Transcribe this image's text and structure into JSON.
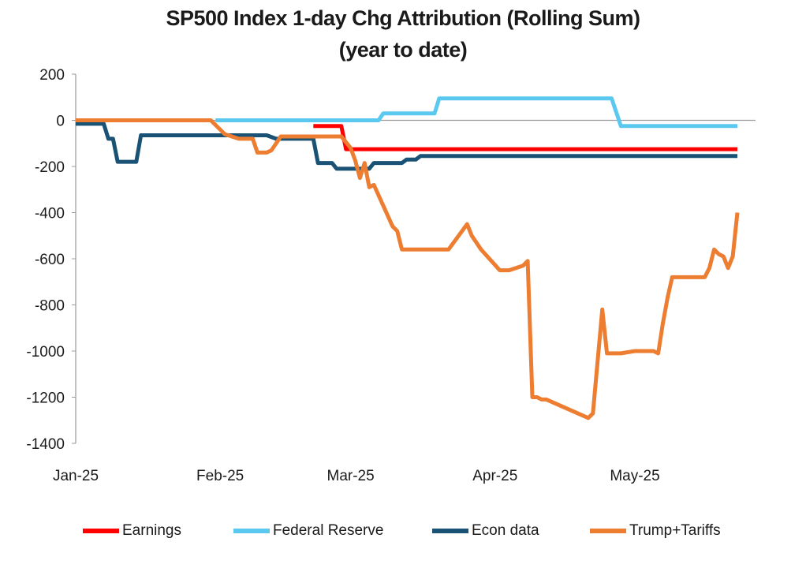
{
  "chart_data": {
    "type": "line",
    "title": "SP500 Index 1-day Chg Attribution (Rolling Sum)",
    "subtitle": "(year to date)",
    "xlabel": "",
    "ylabel": "",
    "ylim": [
      -1400,
      200
    ],
    "yticks": [
      200,
      0,
      -200,
      -400,
      -600,
      -800,
      -1000,
      -1200,
      -1400
    ],
    "xlim": [
      "2025-01-01",
      "2025-05-23"
    ],
    "xticks": [
      {
        "date": "2025-01-01",
        "label": "Jan-25"
      },
      {
        "date": "2025-02-01",
        "label": "Feb-25"
      },
      {
        "date": "2025-03-01",
        "label": "Mar-25"
      },
      {
        "date": "2025-04-01",
        "label": "Apr-25"
      },
      {
        "date": "2025-05-01",
        "label": "May-25"
      }
    ],
    "grid": false,
    "legend": "bottom",
    "series": [
      {
        "name": "Earnings",
        "color": "#ff0000",
        "x": [
          "2025-02-21",
          "2025-02-27",
          "2025-02-28",
          "2025-05-23"
        ],
        "y": [
          -25,
          -25,
          -125,
          -125
        ]
      },
      {
        "name": "Federal Reserve",
        "color": "#5bc8f0",
        "x": [
          "2025-01-31",
          "2025-03-07",
          "2025-03-08",
          "2025-03-19",
          "2025-03-20",
          "2025-04-26",
          "2025-04-28",
          "2025-05-23"
        ],
        "y": [
          0,
          0,
          30,
          30,
          95,
          95,
          -25,
          -25
        ]
      },
      {
        "name": "Econ data",
        "color": "#1a5276",
        "x": [
          "2025-01-01",
          "2025-01-07",
          "2025-01-08",
          "2025-01-09",
          "2025-01-10",
          "2025-01-14",
          "2025-01-15",
          "2025-02-11",
          "2025-02-13",
          "2025-02-21",
          "2025-02-22",
          "2025-02-25",
          "2025-02-26",
          "2025-03-05",
          "2025-03-06",
          "2025-03-12",
          "2025-03-13",
          "2025-03-15",
          "2025-03-16",
          "2025-05-23"
        ],
        "y": [
          -15,
          -15,
          -80,
          -80,
          -180,
          -180,
          -65,
          -65,
          -80,
          -80,
          -185,
          -185,
          -210,
          -210,
          -185,
          -185,
          -170,
          -170,
          -155,
          -155
        ]
      },
      {
        "name": "Trump+Tariffs",
        "color": "#ed7d31",
        "x": [
          "2025-01-01",
          "2025-01-30",
          "2025-02-02",
          "2025-02-05",
          "2025-02-06",
          "2025-02-08",
          "2025-02-09",
          "2025-02-11",
          "2025-02-12",
          "2025-02-14",
          "2025-02-27",
          "2025-03-01",
          "2025-03-02",
          "2025-03-03",
          "2025-03-04",
          "2025-03-05",
          "2025-03-06",
          "2025-03-10",
          "2025-03-11",
          "2025-03-12",
          "2025-03-22",
          "2025-03-26",
          "2025-03-27",
          "2025-03-29",
          "2025-04-02",
          "2025-04-03",
          "2025-04-04",
          "2025-04-07",
          "2025-04-08",
          "2025-04-09",
          "2025-04-10",
          "2025-04-11",
          "2025-04-12",
          "2025-04-21",
          "2025-04-22",
          "2025-04-24",
          "2025-04-25",
          "2025-04-26",
          "2025-04-27",
          "2025-04-28",
          "2025-05-01",
          "2025-05-02",
          "2025-05-05",
          "2025-05-06",
          "2025-05-07",
          "2025-05-08",
          "2025-05-09",
          "2025-05-10",
          "2025-05-11",
          "2025-05-12",
          "2025-05-13",
          "2025-05-14",
          "2025-05-15",
          "2025-05-16",
          "2025-05-17",
          "2025-05-18",
          "2025-05-19",
          "2025-05-20",
          "2025-05-21",
          "2025-05-22",
          "2025-05-23"
        ],
        "y": [
          0,
          0,
          -60,
          -80,
          -80,
          -80,
          -140,
          -140,
          -130,
          -70,
          -70,
          -120,
          -175,
          -250,
          -185,
          -290,
          -280,
          -460,
          -480,
          -560,
          -560,
          -450,
          -500,
          -560,
          -650,
          -650,
          -650,
          -630,
          -610,
          -1200,
          -1200,
          -1210,
          -1210,
          -1290,
          -1270,
          -820,
          -1010,
          -1010,
          -1010,
          -1010,
          -1000,
          -1000,
          -1000,
          -1010,
          -880,
          -770,
          -680,
          -680,
          -680,
          -680,
          -680,
          -680,
          -680,
          -680,
          -640,
          -560,
          -580,
          -590,
          -640,
          -590,
          -400
        ]
      }
    ]
  }
}
